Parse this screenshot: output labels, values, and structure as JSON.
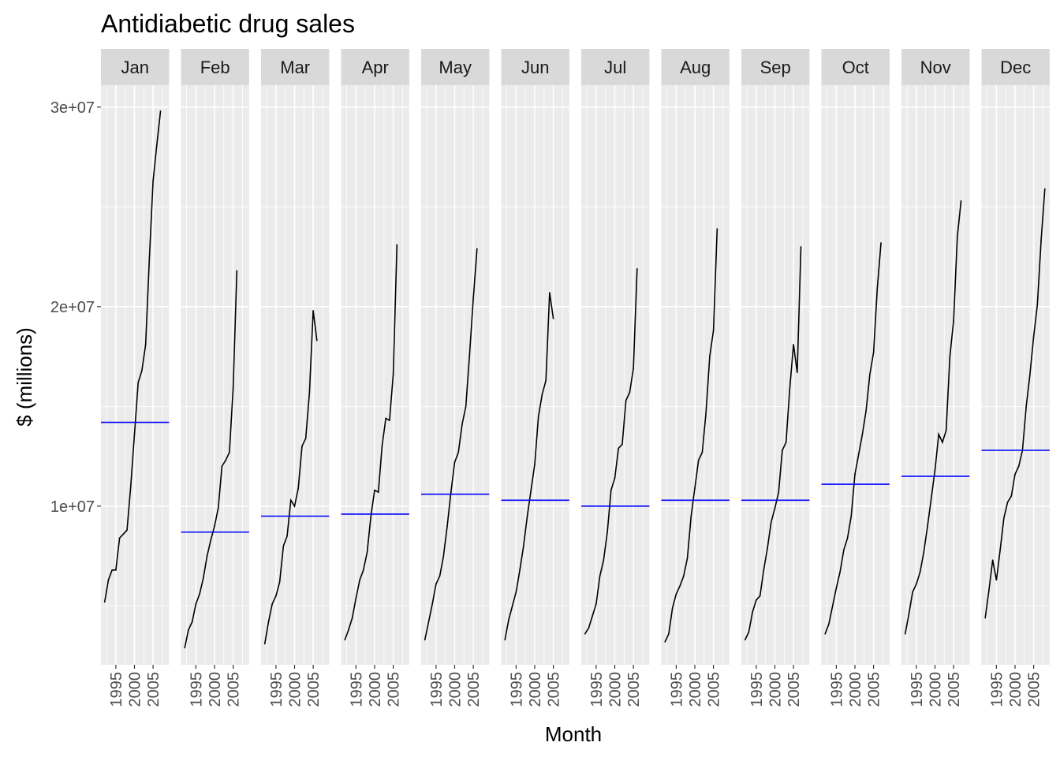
{
  "chart_data": {
    "type": "line",
    "title": "Antidiabetic drug sales",
    "xlabel": "Month",
    "ylabel": "$ (millions)",
    "ylim": [
      2050000,
      31100000
    ],
    "xlim": [
      1991.0,
      2009.3
    ],
    "y_ticks": [
      {
        "value": 10000000,
        "label": "1e+07"
      },
      {
        "value": 20000000,
        "label": "2e+07"
      },
      {
        "value": 30000000,
        "label": "3e+07"
      }
    ],
    "x_ticks": [
      {
        "value": 1995,
        "label": "1995"
      },
      {
        "value": 2000,
        "label": "2000"
      },
      {
        "value": 2005,
        "label": "2005"
      }
    ],
    "grid": true,
    "colors": {
      "line": "#000000",
      "mean_line": "#0000ff",
      "panel_bg": "#ebebeb",
      "strip_bg": "#d9d9d9",
      "grid": "#ffffff"
    },
    "facets": [
      {
        "name": "Jan",
        "mean": 14200000,
        "points": [
          [
            1992,
            5200000
          ],
          [
            1993,
            6300000
          ],
          [
            1994,
            6800000
          ],
          [
            1995,
            6800000
          ],
          [
            1996,
            8400000
          ],
          [
            1997,
            8600000
          ],
          [
            1998,
            8800000
          ],
          [
            1999,
            11000000
          ],
          [
            2000,
            13600000
          ],
          [
            2001,
            16200000
          ],
          [
            2002,
            16800000
          ],
          [
            2003,
            18100000
          ],
          [
            2004,
            22400000
          ],
          [
            2005,
            26300000
          ],
          [
            2006,
            28100000
          ],
          [
            2007,
            29800000
          ]
        ]
      },
      {
        "name": "Feb",
        "mean": 8700000,
        "points": [
          [
            1992,
            2900000
          ],
          [
            1993,
            3800000
          ],
          [
            1994,
            4200000
          ],
          [
            1995,
            5100000
          ],
          [
            1996,
            5600000
          ],
          [
            1997,
            6400000
          ],
          [
            1998,
            7500000
          ],
          [
            1999,
            8300000
          ],
          [
            2000,
            9000000
          ],
          [
            2001,
            9900000
          ],
          [
            2002,
            12000000
          ],
          [
            2003,
            12300000
          ],
          [
            2004,
            12700000
          ],
          [
            2005,
            15900000
          ],
          [
            2006,
            21800000
          ]
        ]
      },
      {
        "name": "Mar",
        "mean": 9500000,
        "points": [
          [
            1992,
            3100000
          ],
          [
            1993,
            4200000
          ],
          [
            1994,
            5100000
          ],
          [
            1995,
            5500000
          ],
          [
            1996,
            6200000
          ],
          [
            1997,
            8000000
          ],
          [
            1998,
            8500000
          ],
          [
            1999,
            10300000
          ],
          [
            2000,
            10000000
          ],
          [
            2001,
            10900000
          ],
          [
            2002,
            13000000
          ],
          [
            2003,
            13400000
          ],
          [
            2004,
            15700000
          ],
          [
            2005,
            19800000
          ],
          [
            2006,
            18300000
          ]
        ]
      },
      {
        "name": "Apr",
        "mean": 9600000,
        "points": [
          [
            1992,
            3300000
          ],
          [
            1993,
            3800000
          ],
          [
            1994,
            4400000
          ],
          [
            1995,
            5400000
          ],
          [
            1996,
            6300000
          ],
          [
            1997,
            6800000
          ],
          [
            1998,
            7700000
          ],
          [
            1999,
            9500000
          ],
          [
            2000,
            10800000
          ],
          [
            2001,
            10700000
          ],
          [
            2002,
            13000000
          ],
          [
            2003,
            14400000
          ],
          [
            2004,
            14300000
          ],
          [
            2005,
            16600000
          ],
          [
            2006,
            23100000
          ]
        ]
      },
      {
        "name": "May",
        "mean": 10600000,
        "points": [
          [
            1992,
            3300000
          ],
          [
            1993,
            4200000
          ],
          [
            1994,
            5100000
          ],
          [
            1995,
            6100000
          ],
          [
            1996,
            6500000
          ],
          [
            1997,
            7500000
          ],
          [
            1998,
            9000000
          ],
          [
            1999,
            10700000
          ],
          [
            2000,
            12200000
          ],
          [
            2001,
            12700000
          ],
          [
            2002,
            14100000
          ],
          [
            2003,
            15000000
          ],
          [
            2004,
            17600000
          ],
          [
            2005,
            20400000
          ],
          [
            2006,
            22900000
          ]
        ]
      },
      {
        "name": "Jun",
        "mean": 10300000,
        "points": [
          [
            1992,
            3300000
          ],
          [
            1993,
            4300000
          ],
          [
            1994,
            5000000
          ],
          [
            1995,
            5700000
          ],
          [
            1996,
            6800000
          ],
          [
            1997,
            8000000
          ],
          [
            1998,
            9500000
          ],
          [
            1999,
            10800000
          ],
          [
            2000,
            12100000
          ],
          [
            2001,
            14500000
          ],
          [
            2002,
            15600000
          ],
          [
            2003,
            16300000
          ],
          [
            2004,
            20700000
          ],
          [
            2005,
            19400000
          ]
        ]
      },
      {
        "name": "Jul",
        "mean": 10000000,
        "points": [
          [
            1992,
            3600000
          ],
          [
            1993,
            3900000
          ],
          [
            1994,
            4500000
          ],
          [
            1995,
            5100000
          ],
          [
            1996,
            6500000
          ],
          [
            1997,
            7300000
          ],
          [
            1998,
            8700000
          ],
          [
            1999,
            10800000
          ],
          [
            2000,
            11400000
          ],
          [
            2001,
            12900000
          ],
          [
            2002,
            13100000
          ],
          [
            2003,
            15300000
          ],
          [
            2004,
            15700000
          ],
          [
            2005,
            16900000
          ],
          [
            2006,
            21900000
          ]
        ]
      },
      {
        "name": "Aug",
        "mean": 10300000,
        "points": [
          [
            1992,
            3200000
          ],
          [
            1993,
            3600000
          ],
          [
            1994,
            4900000
          ],
          [
            1995,
            5600000
          ],
          [
            1996,
            6000000
          ],
          [
            1997,
            6500000
          ],
          [
            1998,
            7400000
          ],
          [
            1999,
            9500000
          ],
          [
            2000,
            10900000
          ],
          [
            2001,
            12300000
          ],
          [
            2002,
            12700000
          ],
          [
            2003,
            14700000
          ],
          [
            2004,
            17500000
          ],
          [
            2005,
            18800000
          ],
          [
            2006,
            23900000
          ]
        ]
      },
      {
        "name": "Sep",
        "mean": 10300000,
        "points": [
          [
            1992,
            3300000
          ],
          [
            1993,
            3700000
          ],
          [
            1994,
            4700000
          ],
          [
            1995,
            5300000
          ],
          [
            1996,
            5500000
          ],
          [
            1997,
            6800000
          ],
          [
            1998,
            7900000
          ],
          [
            1999,
            9200000
          ],
          [
            2000,
            9900000
          ],
          [
            2001,
            10700000
          ],
          [
            2002,
            12800000
          ],
          [
            2003,
            13200000
          ],
          [
            2004,
            15900000
          ],
          [
            2005,
            18100000
          ],
          [
            2006,
            16700000
          ],
          [
            2007,
            23000000
          ]
        ]
      },
      {
        "name": "Oct",
        "mean": 11100000,
        "points": [
          [
            1992,
            3600000
          ],
          [
            1993,
            4100000
          ],
          [
            1994,
            5000000
          ],
          [
            1995,
            5900000
          ],
          [
            1996,
            6700000
          ],
          [
            1997,
            7800000
          ],
          [
            1998,
            8400000
          ],
          [
            1999,
            9500000
          ],
          [
            2000,
            11600000
          ],
          [
            2001,
            12600000
          ],
          [
            2002,
            13600000
          ],
          [
            2003,
            14800000
          ],
          [
            2004,
            16600000
          ],
          [
            2005,
            17700000
          ],
          [
            2006,
            20900000
          ],
          [
            2007,
            23200000
          ]
        ]
      },
      {
        "name": "Nov",
        "mean": 11500000,
        "points": [
          [
            1992,
            3600000
          ],
          [
            1993,
            4600000
          ],
          [
            1994,
            5700000
          ],
          [
            1995,
            6100000
          ],
          [
            1996,
            6700000
          ],
          [
            1997,
            7700000
          ],
          [
            1998,
            9000000
          ],
          [
            1999,
            10400000
          ],
          [
            2000,
            11800000
          ],
          [
            2001,
            13600000
          ],
          [
            2002,
            13200000
          ],
          [
            2003,
            13800000
          ],
          [
            2004,
            17500000
          ],
          [
            2005,
            19300000
          ],
          [
            2006,
            23500000
          ],
          [
            2007,
            25300000
          ]
        ]
      },
      {
        "name": "Dec",
        "mean": 12800000,
        "points": [
          [
            1992,
            4400000
          ],
          [
            1993,
            5800000
          ],
          [
            1994,
            7300000
          ],
          [
            1995,
            6300000
          ],
          [
            1996,
            7800000
          ],
          [
            1997,
            9400000
          ],
          [
            1998,
            10200000
          ],
          [
            1999,
            10500000
          ],
          [
            2000,
            11600000
          ],
          [
            2001,
            12000000
          ],
          [
            2002,
            12800000
          ],
          [
            2003,
            15000000
          ],
          [
            2004,
            16600000
          ],
          [
            2005,
            18500000
          ],
          [
            2006,
            20100000
          ],
          [
            2007,
            23300000
          ],
          [
            2008,
            25900000
          ]
        ]
      }
    ]
  }
}
